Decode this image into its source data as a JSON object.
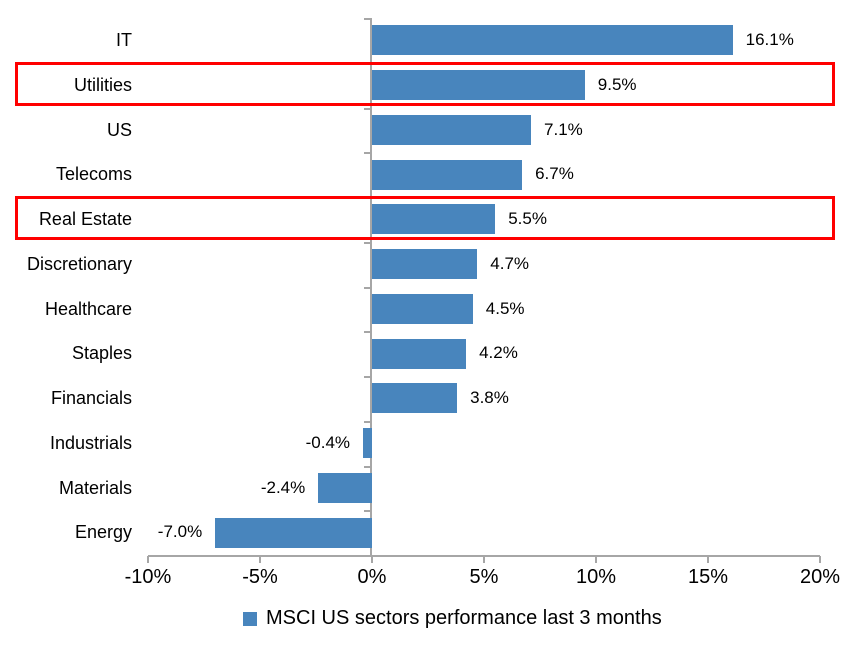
{
  "chart_data": {
    "type": "bar",
    "orientation": "horizontal",
    "categories": [
      "IT",
      "Utilities",
      "US",
      "Telecoms",
      "Real Estate",
      "Discretionary",
      "Healthcare",
      "Staples",
      "Financials",
      "Industrials",
      "Materials",
      "Energy"
    ],
    "values": [
      16.1,
      9.5,
      7.1,
      6.7,
      5.5,
      4.7,
      4.5,
      4.2,
      3.8,
      -0.4,
      -2.4,
      -7.0
    ],
    "value_labels": [
      "16.1%",
      "9.5%",
      "7.1%",
      "6.7%",
      "5.5%",
      "4.7%",
      "4.5%",
      "4.2%",
      "3.8%",
      "-0.4%",
      "-2.4%",
      "-7.0%"
    ],
    "xlim": [
      -10,
      20
    ],
    "x_tick_labels": [
      "-10%",
      "-5%",
      "0%",
      "5%",
      "10%",
      "15%",
      "20%"
    ],
    "x_tick_values": [
      -10,
      -5,
      0,
      5,
      10,
      15,
      20
    ],
    "grid": false,
    "bar_color": "#4885BD",
    "axis_color": "#A6A6A6",
    "text_color": "#000000",
    "legend": {
      "label": "MSCI US sectors performance last 3 months",
      "marker_color": "#4885BD",
      "position": "bottom"
    },
    "highlight": {
      "color": "#FF0000",
      "categories": [
        "Utilities",
        "Real Estate"
      ]
    }
  }
}
